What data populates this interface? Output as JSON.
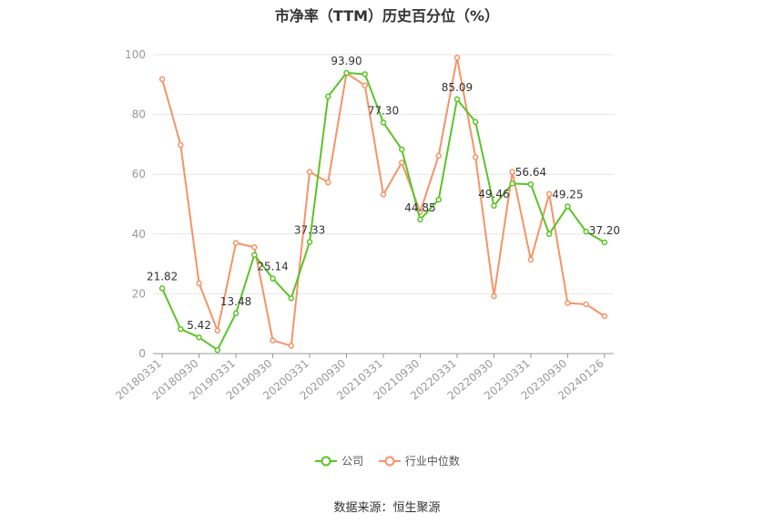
{
  "chart_data": {
    "type": "line",
    "title": "市净率（TTM）历史百分位（%）",
    "ylim": [
      0,
      100
    ],
    "yticks": [
      0,
      20,
      40,
      60,
      80,
      100
    ],
    "categories": [
      "20180331",
      "20180630",
      "20180930",
      "20181231",
      "20190331",
      "20190630",
      "20190930",
      "20191231",
      "20200331",
      "20200630",
      "20200930",
      "20201231",
      "20210331",
      "20210630",
      "20210930",
      "20211231",
      "20220331",
      "20220630",
      "20220930",
      "20221231",
      "20230331",
      "20230630",
      "20230930",
      "20231231",
      "20240126"
    ],
    "xtick_labels": [
      "20180331",
      "20180930",
      "20190331",
      "20190930",
      "20200331",
      "20200930",
      "20210331",
      "20210930",
      "20220331",
      "20220930",
      "20230331",
      "20230930",
      "20240126"
    ],
    "xtick_indices": [
      0,
      2,
      4,
      6,
      8,
      10,
      12,
      14,
      16,
      18,
      20,
      22,
      24
    ],
    "series": [
      {
        "name": "公司",
        "color": "#5ac425",
        "values": [
          21.82,
          8.2,
          5.42,
          1.2,
          13.48,
          33.0,
          25.14,
          18.5,
          37.33,
          86.0,
          93.9,
          93.5,
          77.3,
          68.3,
          44.85,
          51.5,
          85.09,
          77.5,
          49.46,
          56.9,
          56.64,
          40.0,
          49.25,
          40.8,
          37.2
        ],
        "labels": {
          "0": "21.82",
          "2": "5.42",
          "4": "13.48",
          "6": "25.14",
          "8": "37.33",
          "10": "93.90",
          "12": "77.30",
          "14": "44.85",
          "16": "85.09",
          "18": "49.46",
          "20": "56.64",
          "22": "49.25",
          "24": "37.20"
        }
      },
      {
        "name": "行业中位数",
        "color": "#f59467",
        "values": [
          91.8,
          69.8,
          23.5,
          7.7,
          37.0,
          35.6,
          4.4,
          2.6,
          60.8,
          57.3,
          93.8,
          89.7,
          53.2,
          63.9,
          47.4,
          66.2,
          99.0,
          65.7,
          19.2,
          60.8,
          31.4,
          53.4,
          16.9,
          16.5,
          12.5
        ],
        "labels": {}
      }
    ],
    "legend_position": "bottom",
    "grid": true
  },
  "source": "数据来源：恒生聚源"
}
